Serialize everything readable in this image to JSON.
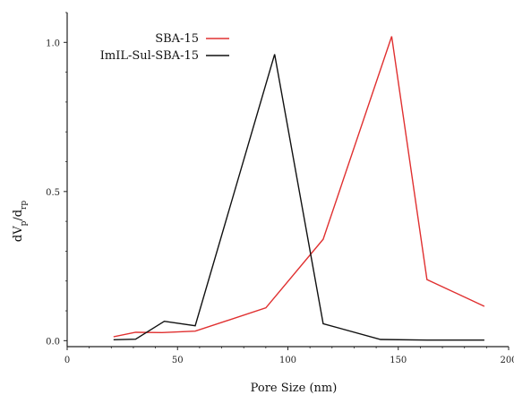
{
  "chart_data": {
    "type": "line",
    "title": "",
    "xlabel": "Pore Size (nm)",
    "ylabel": "dV_p/d_rp",
    "ylabel_main": "dV",
    "ylabel_sub1": "p",
    "ylabel_mid": "/d",
    "ylabel_sub2": "rp",
    "xlim": [
      0,
      200
    ],
    "ylim": [
      -0.02,
      1.1
    ],
    "x_ticks": [
      0,
      50,
      100,
      150,
      200
    ],
    "x_tick_labels": [
      "0",
      "50",
      "100",
      "150",
      "200"
    ],
    "y_ticks": [
      0.0,
      0.5,
      1.0
    ],
    "y_tick_labels": [
      "0.0",
      "0.5",
      "1.0"
    ],
    "grid": false,
    "legend_position": "top-left",
    "series": [
      {
        "name": "SBA-15",
        "color": "#e03030",
        "x": [
          21,
          31,
          43,
          58,
          90,
          116,
          147,
          163,
          189
        ],
        "y": [
          0.013,
          0.028,
          0.027,
          0.032,
          0.11,
          0.34,
          1.02,
          0.205,
          0.115
        ]
      },
      {
        "name": "ImIL-Sul-SBA-15",
        "color": "#111111",
        "x": [
          21,
          31,
          44,
          58,
          94,
          116,
          142,
          163,
          189
        ],
        "y": [
          0.003,
          0.005,
          0.065,
          0.05,
          0.96,
          0.057,
          0.004,
          0.002,
          0.002
        ]
      }
    ]
  }
}
